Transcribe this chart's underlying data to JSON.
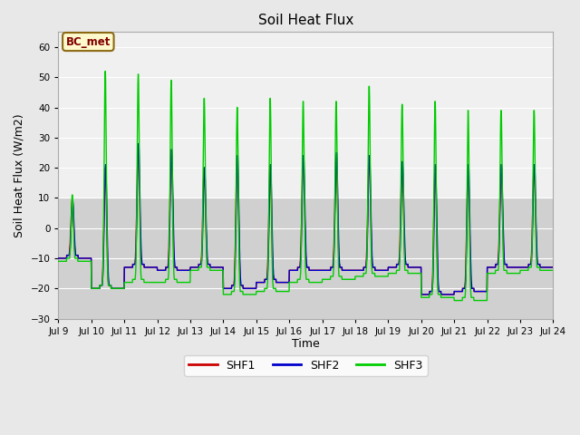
{
  "title": "Soil Heat Flux",
  "xlabel": "Time",
  "ylabel": "Soil Heat Flux (W/m2)",
  "ylim": [
    -30,
    65
  ],
  "yticks": [
    -30,
    -20,
    -10,
    0,
    10,
    20,
    30,
    40,
    50,
    60
  ],
  "fig_bg_color": "#e8e8e8",
  "plot_bg_upper": "#f0f0f0",
  "plot_bg_lower": "#d8d8d8",
  "annotation_label": "BC_met",
  "legend_labels": [
    "SHF1",
    "SHF2",
    "SHF3"
  ],
  "shf1_color": "#cc0000",
  "shf2_color": "#0000cc",
  "shf3_color": "#00cc00",
  "start_day": 9,
  "end_day": 24,
  "num_days": 15,
  "samples_per_day": 144,
  "shf1_peaks": [
    10,
    21,
    28,
    27,
    21,
    25,
    22,
    25,
    25,
    25,
    23,
    22,
    22,
    22,
    22
  ],
  "shf1_troughs": [
    -10,
    -20,
    -13,
    -14,
    -13,
    -20,
    -18,
    -14,
    -14,
    -14,
    -13,
    -22,
    -21,
    -13,
    -13
  ],
  "shf2_peaks": [
    10,
    22,
    29,
    27,
    21,
    25,
    22,
    25,
    26,
    25,
    23,
    22,
    22,
    22,
    22
  ],
  "shf2_troughs": [
    -10,
    -20,
    -13,
    -14,
    -13,
    -20,
    -18,
    -14,
    -14,
    -14,
    -13,
    -22,
    -21,
    -13,
    -13
  ],
  "shf3_peaks": [
    12,
    53,
    52,
    50,
    44,
    41,
    44,
    43,
    43,
    48,
    42,
    43,
    40,
    40,
    40
  ],
  "shf3_troughs": [
    -11,
    -20,
    -18,
    -18,
    -14,
    -22,
    -21,
    -18,
    -17,
    -16,
    -15,
    -23,
    -24,
    -15,
    -14
  ],
  "peak_phase": 0.42,
  "sharpness": 4.0
}
